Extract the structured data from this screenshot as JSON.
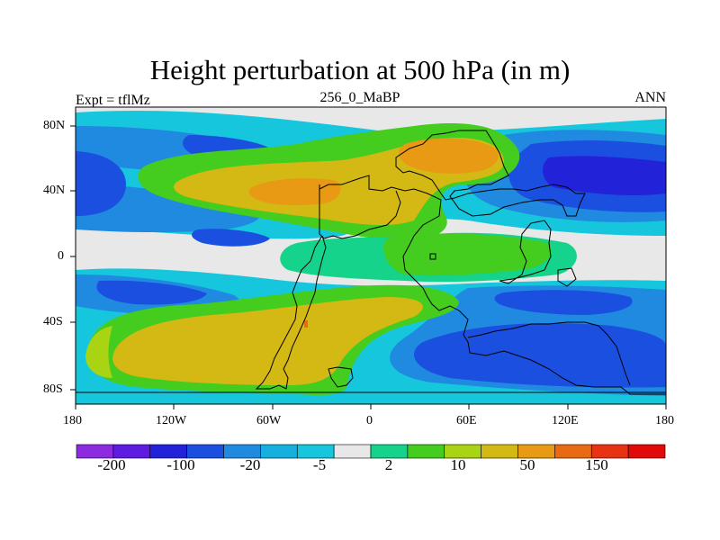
{
  "title": "Height perturbation at 500 hPa (in m)",
  "subtitle_left": "Expt = tflMz",
  "subtitle_center": "256_0_MaBP",
  "subtitle_right": "ANN",
  "map": {
    "projection": "cylindrical equidistant",
    "lon_range": [
      -180,
      180
    ],
    "lat_range": [
      -90,
      90
    ],
    "lon_ticks": [
      "180",
      "120W",
      "60W",
      "0",
      "60E",
      "120E",
      "180"
    ],
    "lat_ticks": [
      "80N",
      "40N",
      "0",
      "40S",
      "80S"
    ]
  },
  "colorbar": {
    "colors": [
      "#8c2be0",
      "#5f1be0",
      "#2222d9",
      "#1b4fe0",
      "#1f8ae0",
      "#16b0de",
      "#16c6dc",
      "#e8e8e8",
      "#15d38a",
      "#44cc1f",
      "#a8d414",
      "#d4b814",
      "#e89a14",
      "#e86a14",
      "#e83214",
      "#e00a0a"
    ],
    "labels": [
      "-200",
      "-100",
      "-20",
      "-5",
      "2",
      "10",
      "50",
      "150"
    ]
  }
}
